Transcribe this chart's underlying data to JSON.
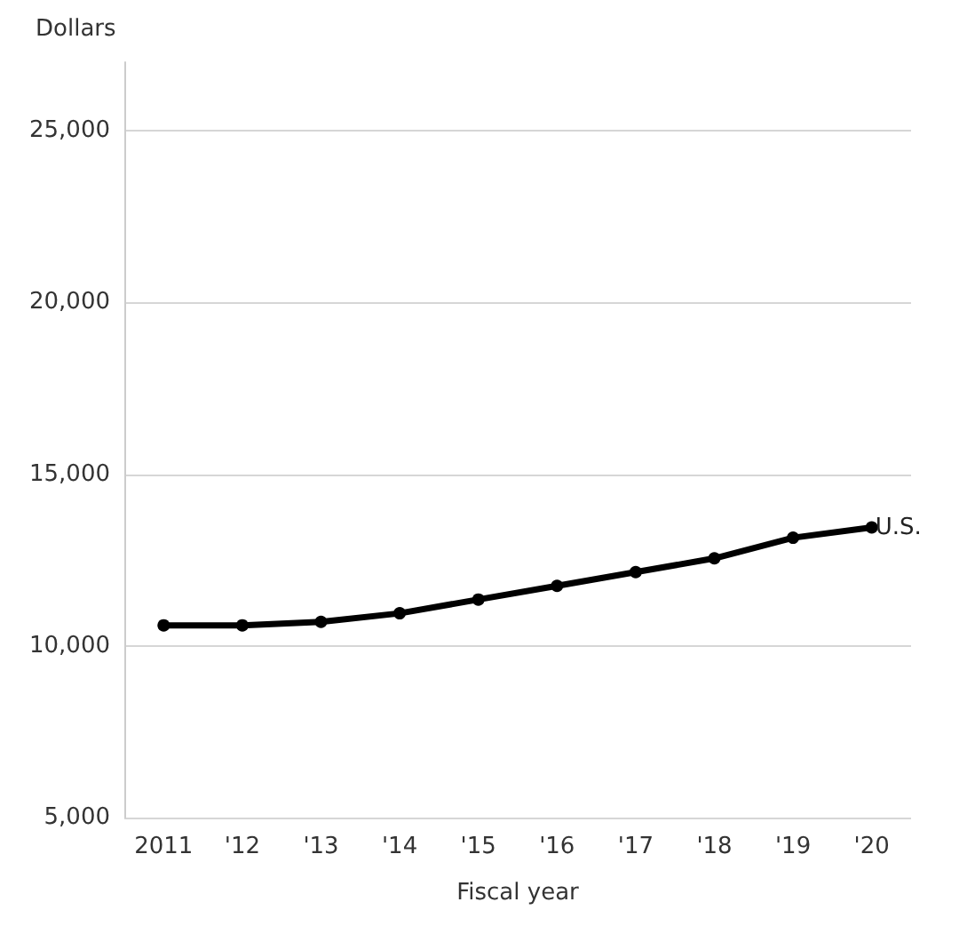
{
  "chart_data": {
    "type": "line",
    "xlabel": "Fiscal year",
    "ylabel": "Dollars",
    "categories": [
      "2011",
      "'12",
      "'13",
      "'14",
      "'15",
      "'16",
      "'17",
      "'18",
      "'19",
      "'20"
    ],
    "series": [
      {
        "name": "U.S.",
        "color": "#000000",
        "values": [
          10600,
          10600,
          10700,
          10950,
          11350,
          11750,
          12150,
          12550,
          13150,
          13450
        ]
      }
    ],
    "ylim": [
      5000,
      27000
    ],
    "yticks": [
      {
        "value": 5000,
        "label": "5,000"
      },
      {
        "value": 10000,
        "label": "10,000"
      },
      {
        "value": 15000,
        "label": "15,000"
      },
      {
        "value": 20000,
        "label": "20,000"
      },
      {
        "value": 25000,
        "label": "25,000"
      }
    ],
    "grid": "y",
    "legend": false,
    "marker": "circle",
    "line_style": "solid"
  }
}
